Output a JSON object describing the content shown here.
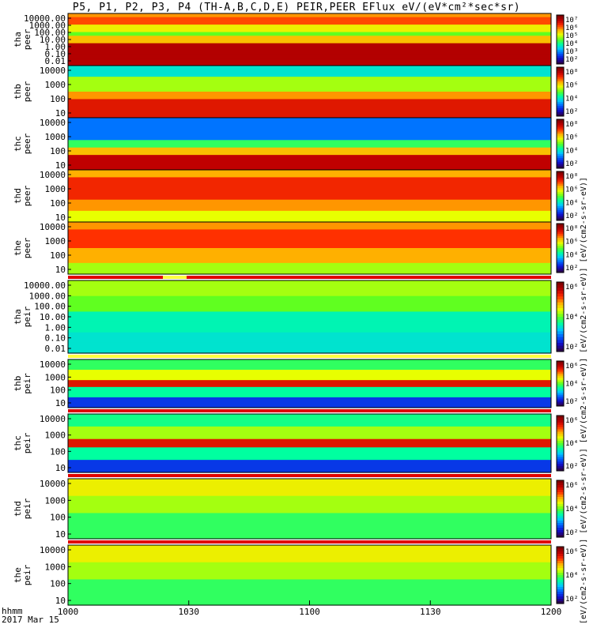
{
  "title": "P5, P1, P2, P3, P4 (TH-A,B,C,D,E) PEIR,PEER EFlux eV/(eV*cm²*sec*sr)",
  "time_axis": {
    "header_line1": "hhmm",
    "header_line2": "2017 Mar 15",
    "ticks": [
      "1000",
      "1030",
      "1100",
      "1130",
      "1200"
    ]
  },
  "colorbar_units": "[eV/(cm2-s-sr-eV)] [eV/(cm2-s-sr-eV)] [eV/(cm2-s-sr-eV)] [eV/(cm2-s-sr-eV)] [eV/(cm2-s-sr-eV)]",
  "colors": {
    "colormap": [
      "#2a0050",
      "#1010d0",
      "#0060ff",
      "#00c8ff",
      "#00ffa0",
      "#60ff20",
      "#e8ff00",
      "#ffb000",
      "#ff3000",
      "#c00000",
      "#800000"
    ],
    "state_bar_red": "#e00000",
    "state_bar_yellow": "#ffff40"
  },
  "panels": [
    {
      "label1": "tha",
      "label2": "peer",
      "yticks": [
        "10000.00",
        "1000.00",
        "100.00",
        "10.00",
        "1.00",
        "0.10",
        "0.01"
      ],
      "cbar": [
        "10⁷",
        "10⁶",
        "10⁵",
        "10⁴",
        "10³",
        "10²"
      ]
    },
    {
      "label1": "thb",
      "label2": "peer",
      "yticks": [
        "10000",
        "1000",
        "100",
        "10"
      ],
      "cbar": [
        "10⁸",
        "10⁶",
        "10⁴",
        "10²"
      ]
    },
    {
      "label1": "thc",
      "label2": "peer",
      "yticks": [
        "10000",
        "1000",
        "100",
        "10"
      ],
      "cbar": [
        "10⁸",
        "10⁶",
        "10⁴",
        "10²"
      ]
    },
    {
      "label1": "thd",
      "label2": "peer",
      "yticks": [
        "10000",
        "1000",
        "100",
        "10"
      ],
      "cbar": [
        "10⁸",
        "10⁶",
        "10⁴",
        "10²"
      ]
    },
    {
      "label1": "the",
      "label2": "peer",
      "yticks": [
        "10000",
        "1000",
        "100",
        "10"
      ],
      "cbar": [
        "10⁸",
        "10⁶",
        "10⁴",
        "10²"
      ]
    },
    {
      "label1": "tha",
      "label2": "peir",
      "yticks": [
        "10000.00",
        "1000.00",
        "100.00",
        "10.00",
        "1.00",
        "0.10",
        "0.01"
      ],
      "cbar": [
        "10⁶",
        "10⁴",
        "10²"
      ]
    },
    {
      "label1": "thb",
      "label2": "peir",
      "yticks": [
        "10000",
        "1000",
        "100",
        "10"
      ],
      "cbar": [
        "10⁶",
        "10⁴",
        "10²"
      ]
    },
    {
      "label1": "thc",
      "label2": "peir",
      "yticks": [
        "10000",
        "1000",
        "100",
        "10"
      ],
      "cbar": [
        "10⁶",
        "10⁴",
        "10²"
      ]
    },
    {
      "label1": "thd",
      "label2": "peir",
      "yticks": [
        "10000",
        "1000",
        "100",
        "10"
      ],
      "cbar": [
        "10⁶",
        "10⁴",
        "10²"
      ]
    },
    {
      "label1": "the",
      "label2": "peir",
      "yticks": [
        "10000",
        "1000",
        "100",
        "10"
      ],
      "cbar": [
        "10⁶",
        "10⁴",
        "10²"
      ]
    }
  ],
  "chart_data": {
    "type": "heatmap",
    "title": "P5, P1, P2, P3, P4 (TH-A,B,C,D,E) PEIR,PEER EFlux eV/(eV*cm²*sec*sr)",
    "xlabel": "hhmm",
    "x_range": [
      "1000",
      "1200"
    ],
    "x_ticks": [
      "1000",
      "1030",
      "1100",
      "1130",
      "1200"
    ],
    "date": "2017 Mar 15",
    "y_scale": "log",
    "panels": [
      "tha peer",
      "thb peer",
      "thc peer",
      "thd peer",
      "the peer",
      "tha peir",
      "thb peir",
      "thc peir",
      "thd peir",
      "the peir"
    ]
  }
}
